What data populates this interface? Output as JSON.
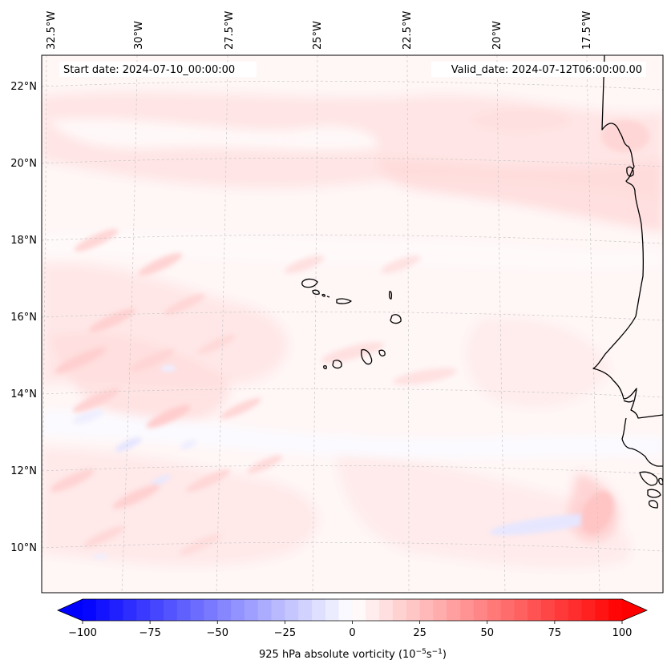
{
  "map": {
    "start_date": "Start date: 2024-07-10_00:00:00",
    "valid_date": "Valid_date: 2024-07-12T06:00:00.00",
    "lon_labels": [
      "32.5°W",
      "30°W",
      "27.5°W",
      "25°W",
      "22.5°W",
      "20°W",
      "17.5°W"
    ],
    "lat_labels": [
      "22°N",
      "20°N",
      "18°N",
      "16°N",
      "14°N",
      "12°N",
      "10°N"
    ],
    "region": "Cape Verde islands and West African coast",
    "field": "925 hPa absolute vorticity"
  },
  "colorbar": {
    "ticks": [
      "−100",
      "−75",
      "−50",
      "−25",
      "0",
      "25",
      "50",
      "75",
      "100"
    ],
    "label": "925 hPa absolute vorticity (10",
    "label_exp1": "−5",
    "label_mid": "s",
    "label_exp2": "−1",
    "label_end": ")",
    "vmin": -100,
    "vmax": 100,
    "levels": 41,
    "negative_color": "#0000ff",
    "zero_color": "#ffffff",
    "positive_color": "#ff0000"
  },
  "colors": {
    "coast": "#000000",
    "grid": "#c8c8c8",
    "ocean_base": "#fff5f5"
  }
}
